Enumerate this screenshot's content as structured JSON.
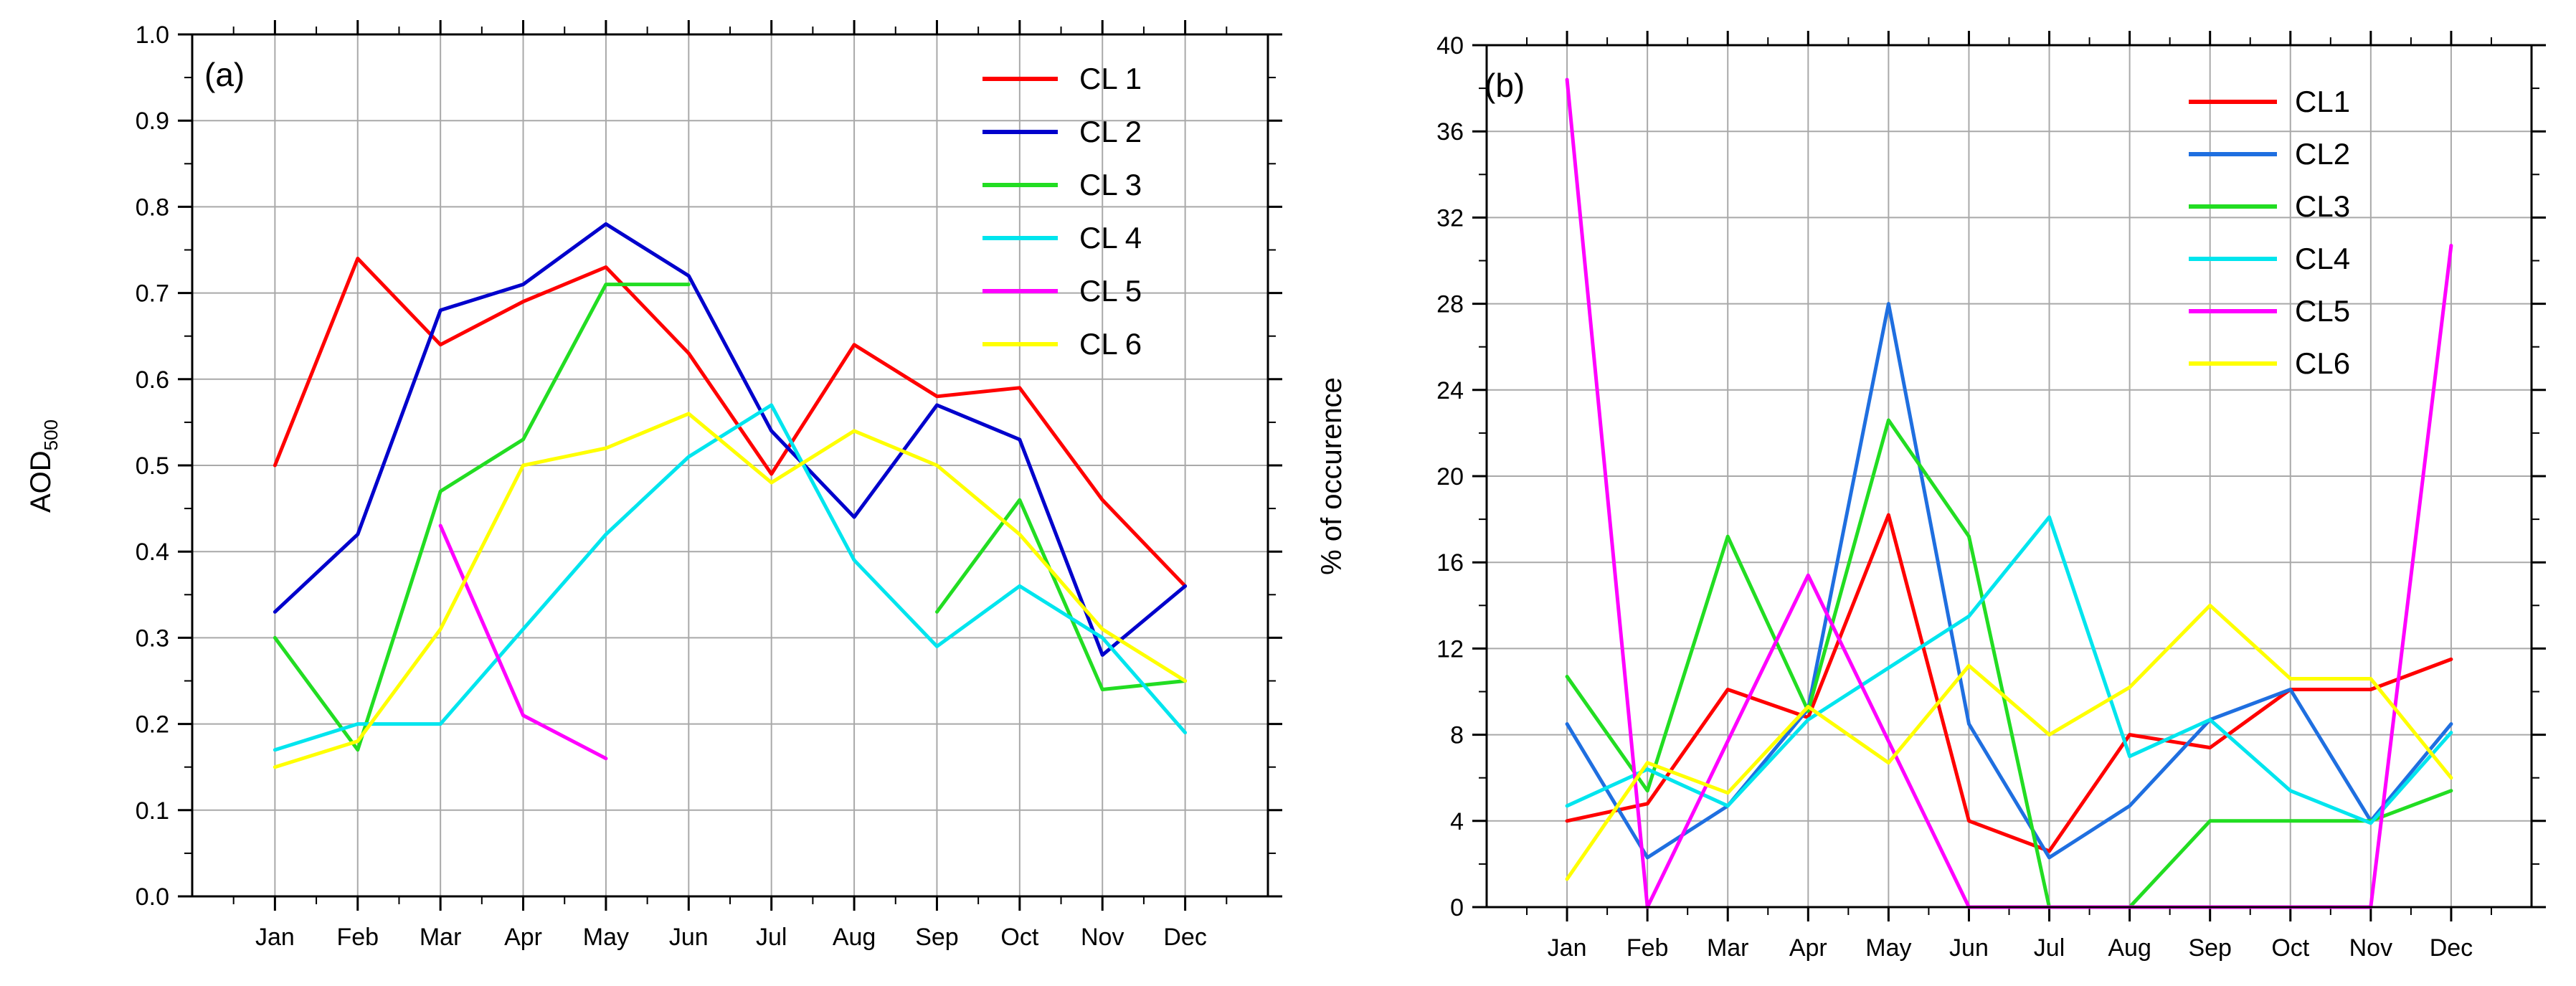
{
  "chart_data": [
    {
      "type": "line",
      "panel_label": "(a)",
      "xlabel": "",
      "ylabel": "AOD",
      "ylabel_sub": "500",
      "categories": [
        "Jan",
        "Feb",
        "Mar",
        "Apr",
        "May",
        "Jun",
        "Jul",
        "Aug",
        "Sep",
        "Oct",
        "Nov",
        "Dec"
      ],
      "ylim": [
        0,
        1.0
      ],
      "yticks": [
        "0.0",
        "0.1",
        "0.2",
        "0.3",
        "0.4",
        "0.5",
        "0.6",
        "0.7",
        "0.8",
        "0.9",
        "1.0"
      ],
      "grid": true,
      "legend_position": "top-right",
      "series": [
        {
          "name": "CL 1",
          "color": "#ff0000",
          "values": [
            0.5,
            0.74,
            0.64,
            0.69,
            0.73,
            0.63,
            0.49,
            0.64,
            0.58,
            0.59,
            0.46,
            0.36
          ]
        },
        {
          "name": "CL 2",
          "color": "#0000cc",
          "values": [
            0.33,
            0.42,
            0.68,
            0.71,
            0.78,
            0.72,
            0.54,
            0.44,
            0.57,
            0.53,
            0.28,
            0.36
          ]
        },
        {
          "name": "CL 3",
          "color": "#22dd22",
          "values": [
            0.3,
            0.17,
            0.47,
            0.53,
            0.71,
            0.71,
            null,
            null,
            0.33,
            0.46,
            0.24,
            0.25
          ]
        },
        {
          "name": "CL 4",
          "color": "#00e5ee",
          "values": [
            0.17,
            0.2,
            0.2,
            0.31,
            0.42,
            0.51,
            0.57,
            0.39,
            0.29,
            0.36,
            0.3,
            0.19
          ]
        },
        {
          "name": "CL 5",
          "color": "#ff00ff",
          "values": [
            null,
            null,
            0.43,
            0.21,
            0.16,
            null,
            null,
            null,
            null,
            null,
            null,
            null
          ]
        },
        {
          "name": "CL 6",
          "color": "#ffff00",
          "values": [
            0.15,
            0.18,
            0.31,
            0.5,
            0.52,
            0.56,
            0.48,
            0.54,
            0.5,
            0.42,
            0.31,
            0.25
          ]
        }
      ]
    },
    {
      "type": "line",
      "panel_label": "(b)",
      "xlabel": "",
      "ylabel": "% of occurence",
      "categories": [
        "Jan",
        "Feb",
        "Mar",
        "Apr",
        "May",
        "Jun",
        "Jul",
        "Aug",
        "Sep",
        "Oct",
        "Nov",
        "Dec"
      ],
      "ylim": [
        0,
        40
      ],
      "yticks": [
        "0",
        "4",
        "8",
        "12",
        "16",
        "20",
        "24",
        "28",
        "32",
        "36",
        "40"
      ],
      "grid": true,
      "legend_position": "top-right",
      "series": [
        {
          "name": "CL1",
          "color": "#ff0000",
          "values": [
            4.0,
            4.8,
            10.1,
            8.8,
            18.2,
            4.0,
            2.6,
            8.0,
            7.4,
            10.1,
            10.1,
            11.5
          ]
        },
        {
          "name": "CL2",
          "color": "#1f6fe0",
          "values": [
            8.5,
            2.3,
            4.7,
            9.2,
            28.0,
            8.5,
            2.3,
            4.7,
            8.7,
            10.1,
            4.0,
            8.5
          ]
        },
        {
          "name": "CL3",
          "color": "#22dd22",
          "values": [
            10.7,
            5.4,
            17.2,
            9.1,
            22.6,
            17.2,
            0.0,
            0.0,
            4.0,
            4.0,
            4.0,
            5.4
          ]
        },
        {
          "name": "CL4",
          "color": "#00e5ee",
          "values": [
            4.7,
            6.4,
            4.7,
            8.7,
            11.1,
            13.5,
            18.1,
            7.0,
            8.7,
            5.4,
            3.9,
            8.1
          ]
        },
        {
          "name": "CL5",
          "color": "#ff00ff",
          "values": [
            38.4,
            0.0,
            7.7,
            15.4,
            7.7,
            0.0,
            0.0,
            0.0,
            0.0,
            0.0,
            0.0,
            30.7
          ]
        },
        {
          "name": "CL6",
          "color": "#ffff00",
          "values": [
            1.3,
            6.7,
            5.3,
            9.3,
            6.7,
            11.2,
            8.0,
            10.2,
            14.0,
            10.6,
            10.6,
            6.0
          ]
        }
      ]
    }
  ]
}
